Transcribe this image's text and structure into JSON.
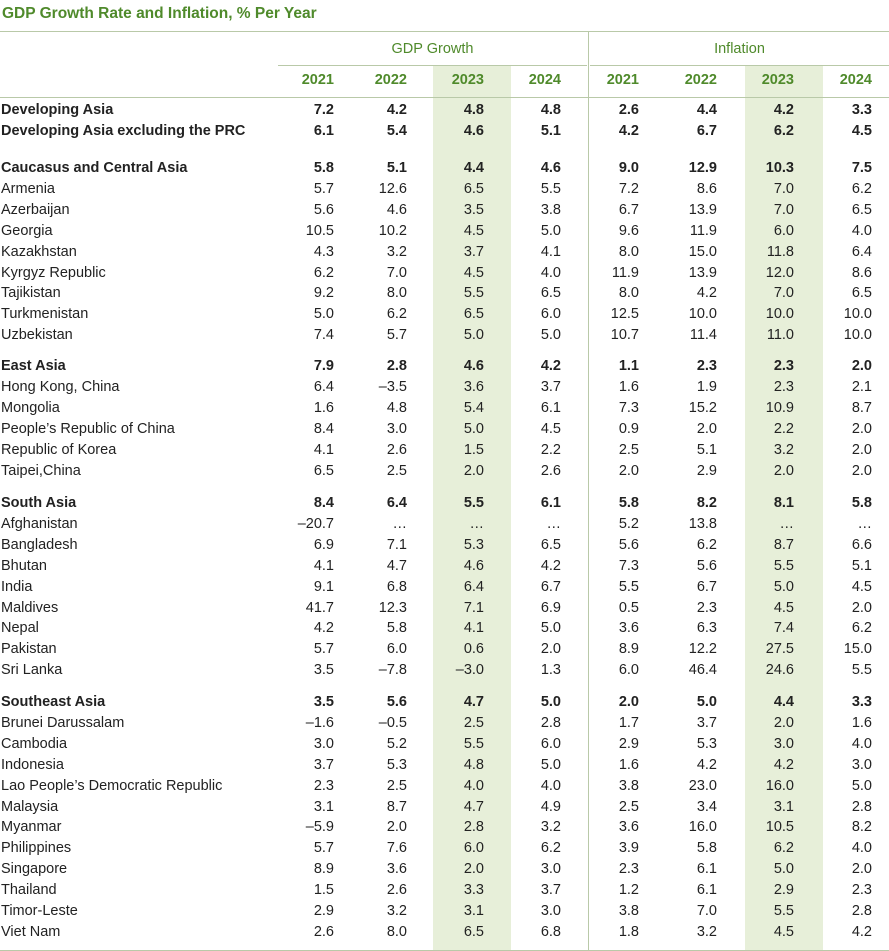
{
  "title": "GDP Growth Rate and Inflation, % Per Year",
  "column_groups": [
    "GDP Growth",
    "Inflation"
  ],
  "years": [
    "2021",
    "2022",
    "2023",
    "2024",
    "2021",
    "2022",
    "2023",
    "2024"
  ],
  "groups": [
    {
      "bold_rows": [
        {
          "label": "Developing Asia",
          "values": [
            "7.2",
            "4.2",
            "4.8",
            "4.8",
            "2.6",
            "4.4",
            "4.2",
            "3.3"
          ]
        },
        {
          "label": "Developing Asia excluding the PRC",
          "values": [
            "6.1",
            "5.4",
            "4.6",
            "5.1",
            "4.2",
            "6.7",
            "6.2",
            "4.5"
          ]
        }
      ],
      "rows": []
    },
    {
      "bold_rows": [
        {
          "label": "Caucasus and Central Asia",
          "values": [
            "5.8",
            "5.1",
            "4.4",
            "4.6",
            "9.0",
            "12.9",
            "10.3",
            "7.5"
          ]
        }
      ],
      "rows": [
        {
          "label": "Armenia",
          "values": [
            "5.7",
            "12.6",
            "6.5",
            "5.5",
            "7.2",
            "8.6",
            "7.0",
            "6.2"
          ]
        },
        {
          "label": "Azerbaijan",
          "values": [
            "5.6",
            "4.6",
            "3.5",
            "3.8",
            "6.7",
            "13.9",
            "7.0",
            "6.5"
          ]
        },
        {
          "label": "Georgia",
          "values": [
            "10.5",
            "10.2",
            "4.5",
            "5.0",
            "9.6",
            "11.9",
            "6.0",
            "4.0"
          ]
        },
        {
          "label": "Kazakhstan",
          "values": [
            "4.3",
            "3.2",
            "3.7",
            "4.1",
            "8.0",
            "15.0",
            "11.8",
            "6.4"
          ]
        },
        {
          "label": "Kyrgyz Republic",
          "values": [
            "6.2",
            "7.0",
            "4.5",
            "4.0",
            "11.9",
            "13.9",
            "12.0",
            "8.6"
          ]
        },
        {
          "label": "Tajikistan",
          "values": [
            "9.2",
            "8.0",
            "5.5",
            "6.5",
            "8.0",
            "4.2",
            "7.0",
            "6.5"
          ]
        },
        {
          "label": "Turkmenistan",
          "values": [
            "5.0",
            "6.2",
            "6.5",
            "6.0",
            "12.5",
            "10.0",
            "10.0",
            "10.0"
          ]
        },
        {
          "label": "Uzbekistan",
          "values": [
            "7.4",
            "5.7",
            "5.0",
            "5.0",
            "10.7",
            "11.4",
            "11.0",
            "10.0"
          ]
        }
      ]
    },
    {
      "bold_rows": [
        {
          "label": "East Asia",
          "values": [
            "7.9",
            "2.8",
            "4.6",
            "4.2",
            "1.1",
            "2.3",
            "2.3",
            "2.0"
          ]
        }
      ],
      "rows": [
        {
          "label": "Hong Kong, China",
          "values": [
            "6.4",
            "–3.5",
            "3.6",
            "3.7",
            "1.6",
            "1.9",
            "2.3",
            "2.1"
          ]
        },
        {
          "label": "Mongolia",
          "values": [
            "1.6",
            "4.8",
            "5.4",
            "6.1",
            "7.3",
            "15.2",
            "10.9",
            "8.7"
          ]
        },
        {
          "label": "People’s Republic of China",
          "values": [
            "8.4",
            "3.0",
            "5.0",
            "4.5",
            "0.9",
            "2.0",
            "2.2",
            "2.0"
          ]
        },
        {
          "label": "Republic of Korea",
          "values": [
            "4.1",
            "2.6",
            "1.5",
            "2.2",
            "2.5",
            "5.1",
            "3.2",
            "2.0"
          ]
        },
        {
          "label": "Taipei,China",
          "values": [
            "6.5",
            "2.5",
            "2.0",
            "2.6",
            "2.0",
            "2.9",
            "2.0",
            "2.0"
          ]
        }
      ]
    },
    {
      "bold_rows": [
        {
          "label": "South Asia",
          "values": [
            "8.4",
            "6.4",
            "5.5",
            "6.1",
            "5.8",
            "8.2",
            "8.1",
            "5.8"
          ]
        }
      ],
      "rows": [
        {
          "label": "Afghanistan",
          "values": [
            "–20.7",
            "…",
            "…",
            "…",
            "5.2",
            "13.8",
            "…",
            "…"
          ]
        },
        {
          "label": "Bangladesh",
          "values": [
            "6.9",
            "7.1",
            "5.3",
            "6.5",
            "5.6",
            "6.2",
            "8.7",
            "6.6"
          ]
        },
        {
          "label": "Bhutan",
          "values": [
            "4.1",
            "4.7",
            "4.6",
            "4.2",
            "7.3",
            "5.6",
            "5.5",
            "5.1"
          ]
        },
        {
          "label": "India",
          "values": [
            "9.1",
            "6.8",
            "6.4",
            "6.7",
            "5.5",
            "6.7",
            "5.0",
            "4.5"
          ]
        },
        {
          "label": "Maldives",
          "values": [
            "41.7",
            "12.3",
            "7.1",
            "6.9",
            "0.5",
            "2.3",
            "4.5",
            "2.0"
          ]
        },
        {
          "label": "Nepal",
          "values": [
            "4.2",
            "5.8",
            "4.1",
            "5.0",
            "3.6",
            "6.3",
            "7.4",
            "6.2"
          ]
        },
        {
          "label": "Pakistan",
          "values": [
            "5.7",
            "6.0",
            "0.6",
            "2.0",
            "8.9",
            "12.2",
            "27.5",
            "15.0"
          ]
        },
        {
          "label": "Sri Lanka",
          "values": [
            "3.5",
            "–7.8",
            "–3.0",
            "1.3",
            "6.0",
            "46.4",
            "24.6",
            "5.5"
          ]
        }
      ]
    },
    {
      "bold_rows": [
        {
          "label": "Southeast Asia",
          "values": [
            "3.5",
            "5.6",
            "4.7",
            "5.0",
            "2.0",
            "5.0",
            "4.4",
            "3.3"
          ]
        }
      ],
      "rows": [
        {
          "label": "Brunei Darussalam",
          "values": [
            "–1.6",
            "–0.5",
            "2.5",
            "2.8",
            "1.7",
            "3.7",
            "2.0",
            "1.6"
          ]
        },
        {
          "label": "Cambodia",
          "values": [
            "3.0",
            "5.2",
            "5.5",
            "6.0",
            "2.9",
            "5.3",
            "3.0",
            "4.0"
          ]
        },
        {
          "label": "Indonesia",
          "values": [
            "3.7",
            "5.3",
            "4.8",
            "5.0",
            "1.6",
            "4.2",
            "4.2",
            "3.0"
          ]
        },
        {
          "label": "Lao People’s Democratic Republic",
          "values": [
            "2.3",
            "2.5",
            "4.0",
            "4.0",
            "3.8",
            "23.0",
            "16.0",
            "5.0"
          ]
        },
        {
          "label": "Malaysia",
          "values": [
            "3.1",
            "8.7",
            "4.7",
            "4.9",
            "2.5",
            "3.4",
            "3.1",
            "2.8"
          ]
        },
        {
          "label": "Myanmar",
          "values": [
            "–5.9",
            "2.0",
            "2.8",
            "3.2",
            "3.6",
            "16.0",
            "10.5",
            "8.2"
          ]
        },
        {
          "label": "Philippines",
          "values": [
            "5.7",
            "7.6",
            "6.0",
            "6.2",
            "3.9",
            "5.8",
            "6.2",
            "4.0"
          ]
        },
        {
          "label": "Singapore",
          "values": [
            "8.9",
            "3.6",
            "2.0",
            "3.0",
            "2.3",
            "6.1",
            "5.0",
            "2.0"
          ]
        },
        {
          "label": "Thailand",
          "values": [
            "1.5",
            "2.6",
            "3.3",
            "3.7",
            "1.2",
            "6.1",
            "2.9",
            "2.3"
          ]
        },
        {
          "label": "Timor-Leste",
          "values": [
            "2.9",
            "3.2",
            "3.1",
            "3.0",
            "3.8",
            "7.0",
            "5.5",
            "2.8"
          ]
        },
        {
          "label": "Viet Nam",
          "values": [
            "2.6",
            "8.0",
            "6.5",
            "6.8",
            "1.8",
            "3.2",
            "4.5",
            "4.2"
          ]
        }
      ]
    }
  ]
}
